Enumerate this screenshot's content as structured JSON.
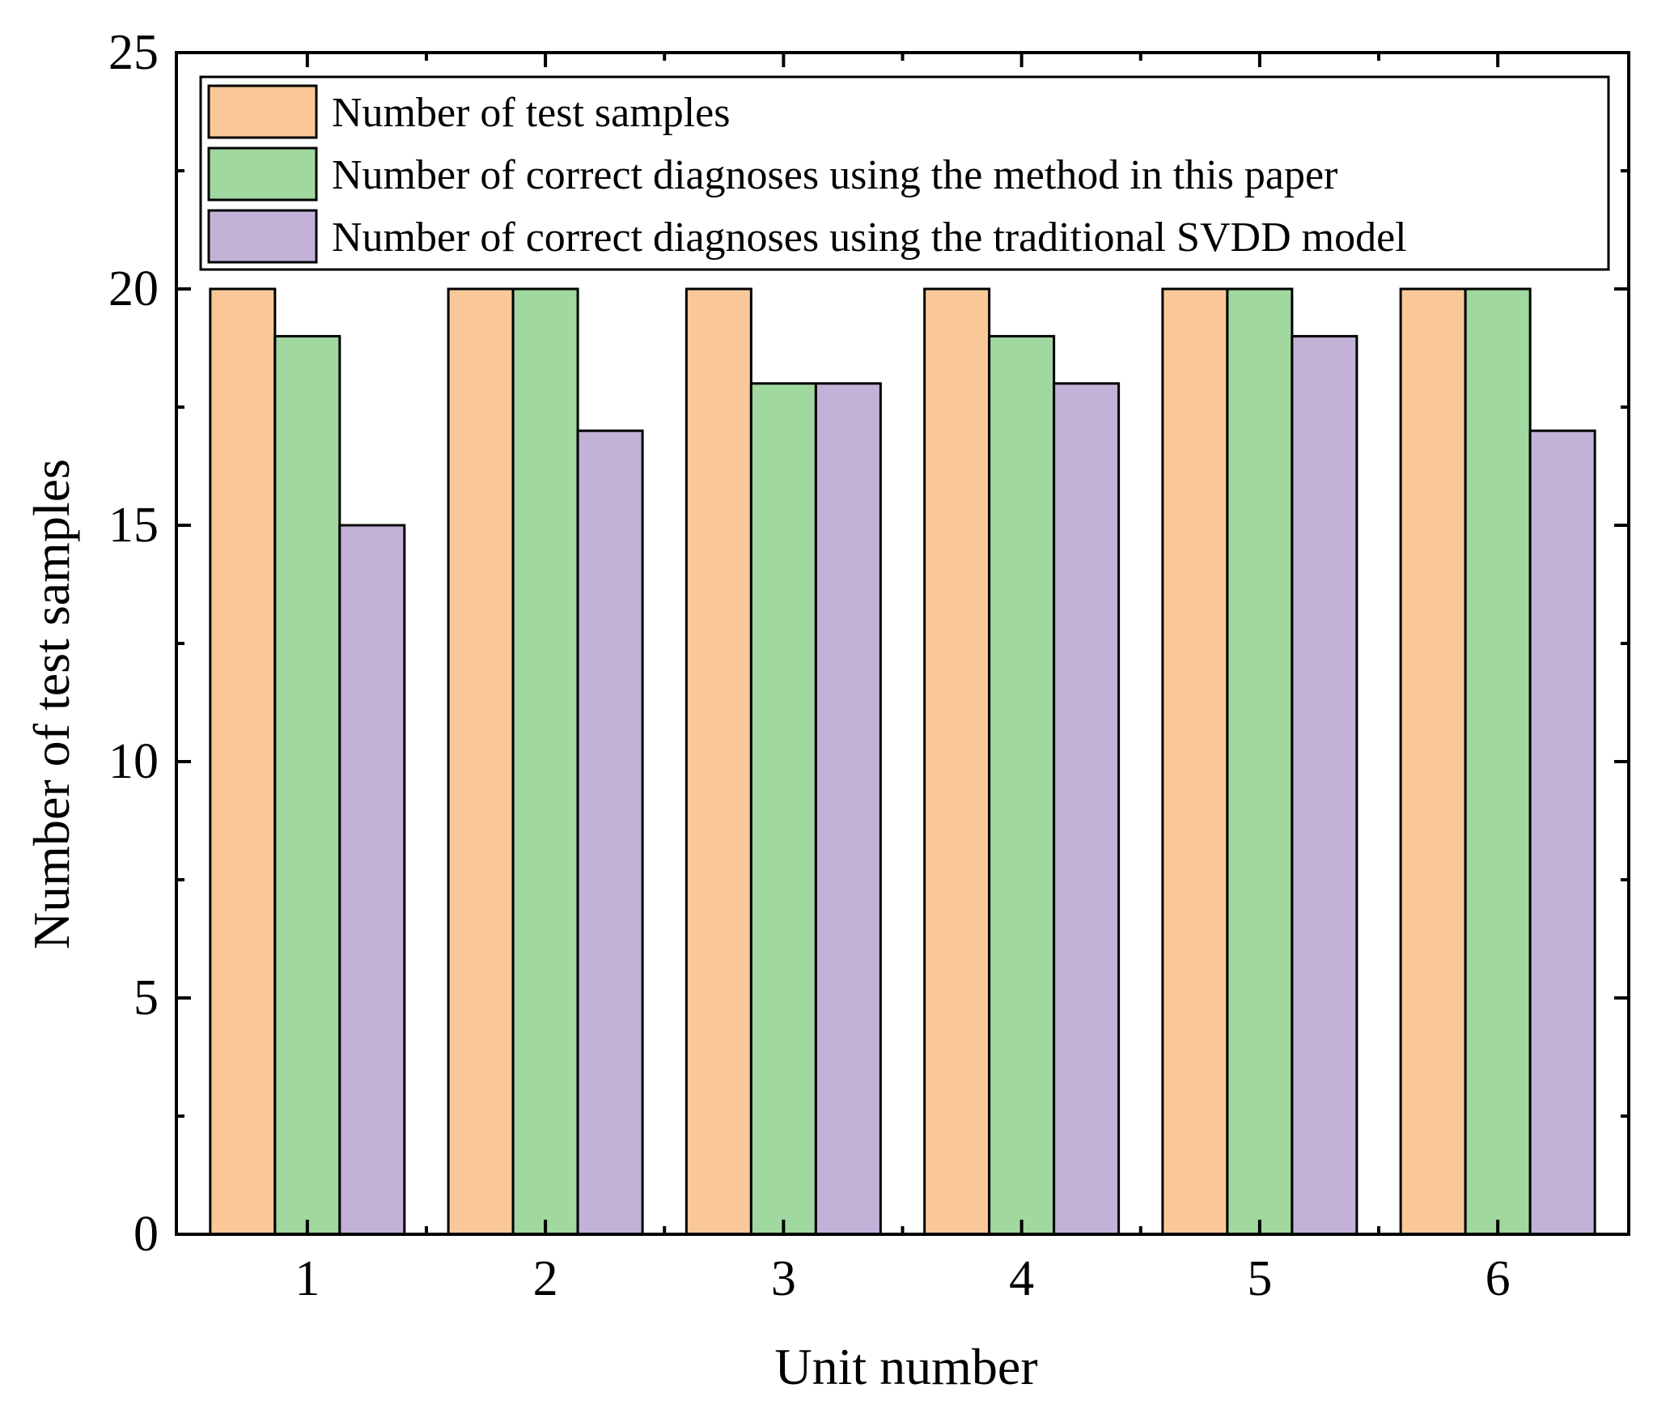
{
  "chart_data": {
    "type": "bar",
    "categories": [
      "1",
      "2",
      "3",
      "4",
      "5",
      "6"
    ],
    "series": [
      {
        "name": "Number of test samples",
        "values": [
          20,
          20,
          20,
          20,
          20,
          20
        ],
        "color": "#FAC898"
      },
      {
        "name": "Number of correct diagnoses using the method in this paper",
        "values": [
          19,
          20,
          18,
          19,
          20,
          20
        ],
        "color": "#A0D8A0"
      },
      {
        "name": "Number of correct diagnoses using the traditional SVDD model",
        "values": [
          15,
          17,
          18,
          18,
          19,
          17
        ],
        "color": "#C3B2D8"
      }
    ],
    "xlabel": "Unit number",
    "ylabel": "Number of test samples",
    "ylim": [
      0,
      25
    ],
    "yticks": [
      0,
      5,
      10,
      15,
      20,
      25
    ],
    "grid": false,
    "legend_position": "top"
  }
}
